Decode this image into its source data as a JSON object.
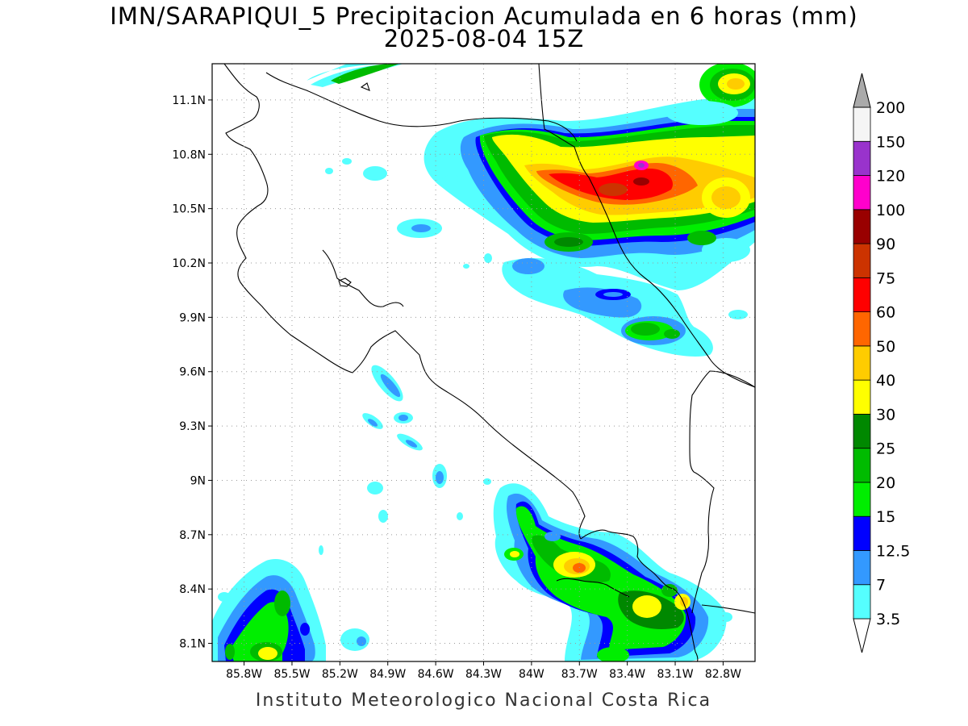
{
  "title": {
    "line1": "IMN/SARAPIQUI_5 Precipitacion Acumulada en 6 horas (mm)",
    "line2": "2025-08-04 15Z"
  },
  "footer": "Instituto Meteorologico Nacional Costa Rica",
  "map": {
    "lon_range": [
      -86.0,
      -82.6
    ],
    "lat_range": [
      8.0,
      11.3
    ],
    "lon_ticks": [
      "85.8W",
      "85.5W",
      "85.2W",
      "84.9W",
      "84.6W",
      "84.3W",
      "84W",
      "83.7W",
      "83.4W",
      "83.1W",
      "82.8W"
    ],
    "lat_ticks": [
      "8.1N",
      "8.4N",
      "8.7N",
      "9N",
      "9.3N",
      "9.6N",
      "9.9N",
      "10.2N",
      "10.5N",
      "10.8N",
      "11.1N"
    ],
    "grid": "dotted"
  },
  "colorbar": {
    "labels": [
      "3.5",
      "7",
      "12.5",
      "15",
      "20",
      "25",
      "30",
      "40",
      "50",
      "60",
      "75",
      "90",
      "100",
      "120",
      "150",
      "200"
    ],
    "colors": [
      "#ffffff",
      "#55ffff",
      "#3399ff",
      "#0000ff",
      "#00ee00",
      "#00bb00",
      "#008800",
      "#ffff00",
      "#ffcc00",
      "#ff6600",
      "#ff0000",
      "#cc3300",
      "#990000",
      "#ff00cc",
      "#9933cc",
      "#f5f5f5",
      "#aaaaaa"
    ]
  }
}
